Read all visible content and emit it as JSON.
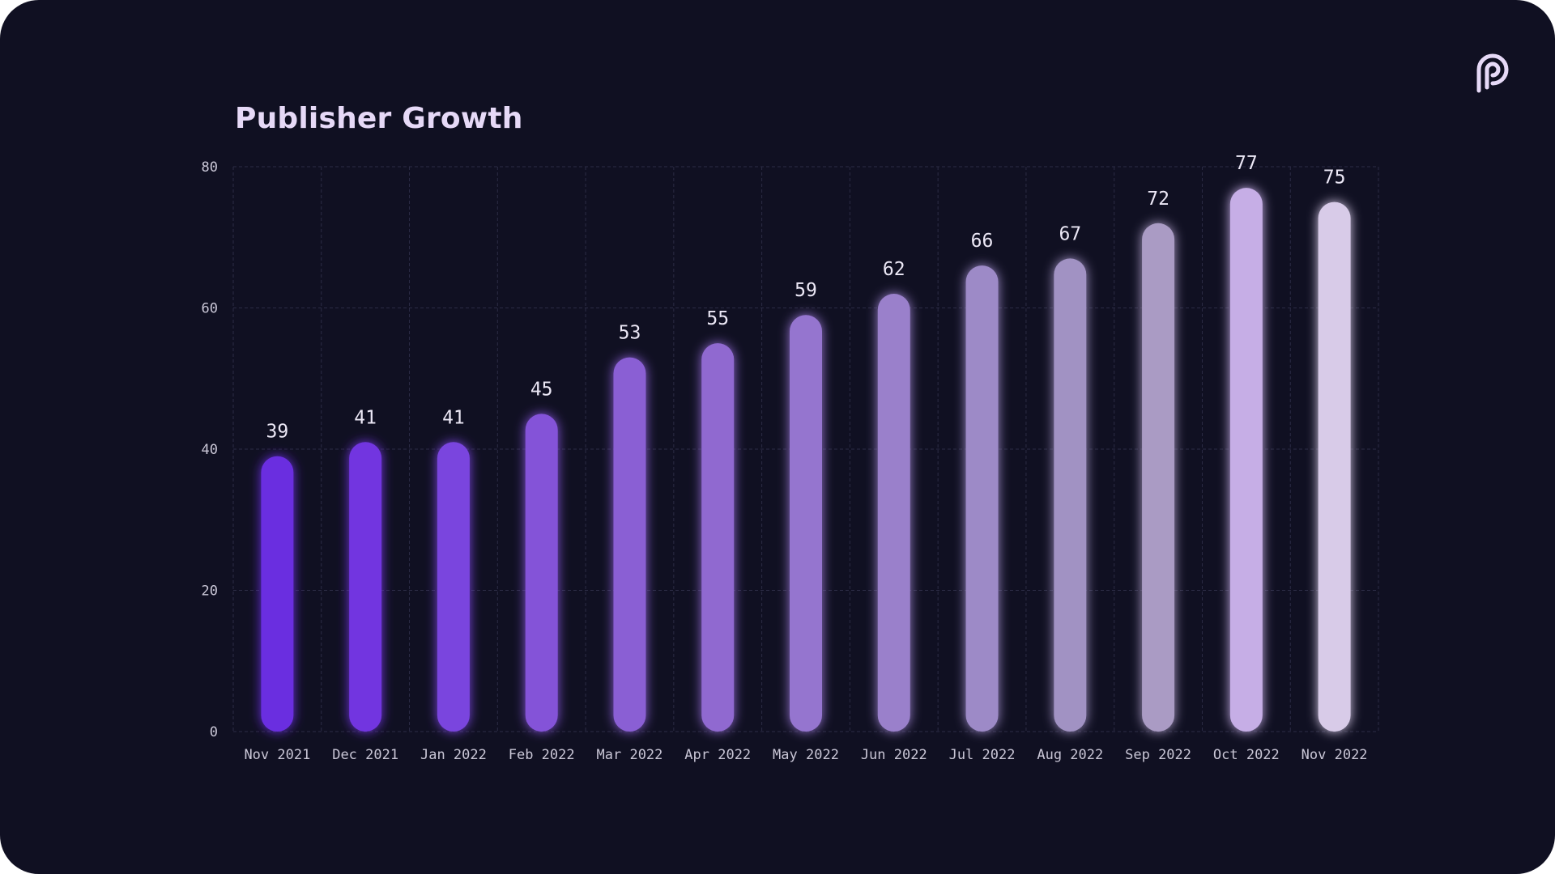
{
  "title": "Publisher Growth",
  "logo": {
    "icon": "p-logo-icon",
    "color": "#e6d9f7"
  },
  "chart_data": {
    "type": "bar",
    "title": "Publisher Growth",
    "xlabel": "",
    "ylabel": "",
    "categories": [
      "Nov 2021",
      "Dec 2021",
      "Jan 2022",
      "Feb 2022",
      "Mar 2022",
      "Apr 2022",
      "May 2022",
      "Jun 2022",
      "Jul 2022",
      "Aug 2022",
      "Sep 2022",
      "Oct 2022",
      "Nov 2022"
    ],
    "values": [
      39,
      41,
      41,
      45,
      53,
      55,
      59,
      62,
      66,
      67,
      72,
      77,
      75
    ],
    "ylim": [
      0,
      80
    ],
    "yticks": [
      0,
      20,
      40,
      60,
      80
    ],
    "grid": true,
    "data_labels": true,
    "bar_colors": [
      "#6a2ee0",
      "#7236e0",
      "#7a44de",
      "#8452d8",
      "#8a5fd4",
      "#9069d0",
      "#9575cf",
      "#9a80cb",
      "#9d8ac7",
      "#a192c3",
      "#aa9bc4",
      "#c6aee6",
      "#d8cbe8"
    ],
    "background": "#101022",
    "grid_color": "#2c2c45"
  }
}
